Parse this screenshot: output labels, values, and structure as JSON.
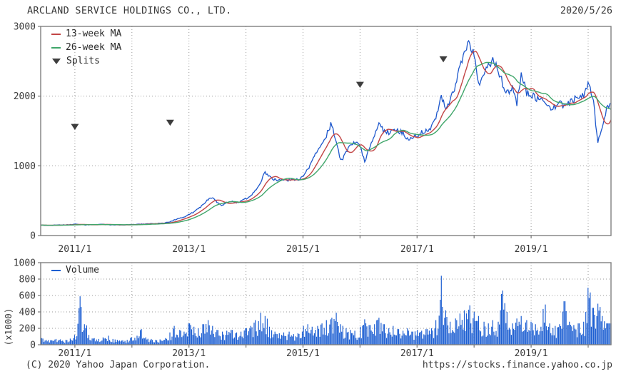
{
  "header": {
    "title": "ARCLAND SERVICE HOLDINGS CO., LTD.",
    "date": "2020/5/26"
  },
  "footer": {
    "copyright": "(C) 2020 Yahoo Japan Corporation.",
    "url": "https://stocks.finance.yahoo.co.jp"
  },
  "colors": {
    "price": "#1d57cc",
    "ma13": "#c24545",
    "ma26": "#3fa66a",
    "volume": "#1d5fd2",
    "grid": "#9a9a9a",
    "frame": "#7f7f7f",
    "marker": "#3d3d3d",
    "text": "#3a3a3a",
    "background": "#ffffff"
  },
  "chart_data": [
    {
      "type": "line",
      "title": "Weekly close price with moving averages",
      "x_start": {
        "year": 2010,
        "month": 6
      },
      "x_interval": "monthly",
      "xlim_decimal_years": [
        2010.4,
        2020.4
      ],
      "ylim": [
        0,
        3000
      ],
      "yticks": [
        0,
        1000,
        2000,
        3000
      ],
      "x_gridline_years": [
        2011,
        2012,
        2013,
        2014,
        2015,
        2016,
        2017,
        2018,
        2019,
        2020
      ],
      "x_tick_label_years": [
        2011,
        2013,
        2015,
        2017,
        2019
      ],
      "x_tick_labels": [
        "2011/1",
        "2013/1",
        "2015/1",
        "2017/1",
        "2019/1"
      ],
      "legend": [
        {
          "label": "13-week MA",
          "color": "#c24545"
        },
        {
          "label": "26-week MA",
          "color": "#3fa66a"
        },
        {
          "label": "Splits",
          "color": "#3d3d3d"
        }
      ],
      "ma_weeks": [
        13,
        26
      ],
      "splits": [
        {
          "x": 2011.0,
          "y": 1560
        },
        {
          "x": 2012.67,
          "y": 1620
        },
        {
          "x": 2016.0,
          "y": 2165
        },
        {
          "x": 2017.46,
          "y": 2530
        }
      ],
      "series": [
        {
          "name": "close",
          "values": [
            150,
            148,
            146,
            150,
            153,
            151,
            156,
            165,
            158,
            150,
            155,
            157,
            158,
            160,
            155,
            152,
            154,
            153,
            156,
            158,
            161,
            165,
            168,
            170,
            172,
            176,
            182,
            196,
            226,
            246,
            266,
            300,
            335,
            385,
            445,
            515,
            545,
            470,
            430,
            470,
            497,
            468,
            500,
            530,
            565,
            645,
            760,
            900,
            855,
            800,
            788,
            812,
            790,
            798,
            806,
            830,
            950,
            1080,
            1210,
            1340,
            1450,
            1620,
            1330,
            1060,
            1200,
            1300,
            1345,
            1270,
            1060,
            1255,
            1400,
            1630,
            1500,
            1480,
            1555,
            1505,
            1480,
            1385,
            1420,
            1430,
            1480,
            1520,
            1555,
            1700,
            2020,
            1850,
            1950,
            2150,
            2400,
            2620,
            2780,
            2580,
            2150,
            2350,
            2460,
            2500,
            2400,
            2180,
            2050,
            2140,
            1900,
            2340,
            2050,
            2020,
            1975,
            1945,
            1900,
            1805,
            1850,
            1900,
            1855,
            1905,
            1950,
            1985,
            2005,
            2160,
            2000,
            1340,
            1520,
            1860
          ]
        }
      ]
    },
    {
      "type": "bar",
      "title": "Volume",
      "ylabel": "(x1000)",
      "x_start": {
        "year": 2010,
        "month": 6
      },
      "x_interval": "monthly",
      "xlim_decimal_years": [
        2010.4,
        2020.4
      ],
      "ylim": [
        0,
        1000
      ],
      "yticks": [
        0,
        200,
        400,
        600,
        800,
        1000
      ],
      "x_gridline_years": [
        2011,
        2012,
        2013,
        2014,
        2015,
        2016,
        2017,
        2018,
        2019,
        2020
      ],
      "x_tick_label_years": [
        2011,
        2013,
        2015,
        2017,
        2019
      ],
      "x_tick_labels": [
        "2011/1",
        "2013/1",
        "2015/1",
        "2017/1",
        "2019/1"
      ],
      "legend": [
        {
          "label": "Volume",
          "color": "#1d5fd2"
        }
      ],
      "series": [
        {
          "name": "volume_x1000",
          "values": [
            80,
            60,
            55,
            70,
            65,
            60,
            75,
            120,
            590,
            250,
            120,
            80,
            70,
            90,
            110,
            70,
            60,
            55,
            60,
            90,
            110,
            190,
            90,
            70,
            60,
            65,
            80,
            150,
            230,
            180,
            160,
            260,
            220,
            200,
            250,
            300,
            230,
            180,
            160,
            170,
            180,
            150,
            160,
            200,
            230,
            300,
            390,
            350,
            220,
            160,
            140,
            150,
            160,
            130,
            140,
            230,
            250,
            220,
            230,
            260,
            300,
            330,
            390,
            250,
            200,
            180,
            170,
            220,
            310,
            240,
            250,
            330,
            250,
            200,
            230,
            190,
            170,
            200,
            160,
            180,
            170,
            190,
            200,
            300,
            840,
            420,
            280,
            320,
            380,
            420,
            480,
            400,
            350,
            280,
            260,
            300,
            280,
            660,
            400,
            260,
            320,
            350,
            300,
            280,
            250,
            220,
            490,
            260,
            230,
            250,
            530,
            280,
            240,
            260,
            280,
            695,
            450,
            500,
            350,
            260
          ]
        }
      ]
    }
  ]
}
